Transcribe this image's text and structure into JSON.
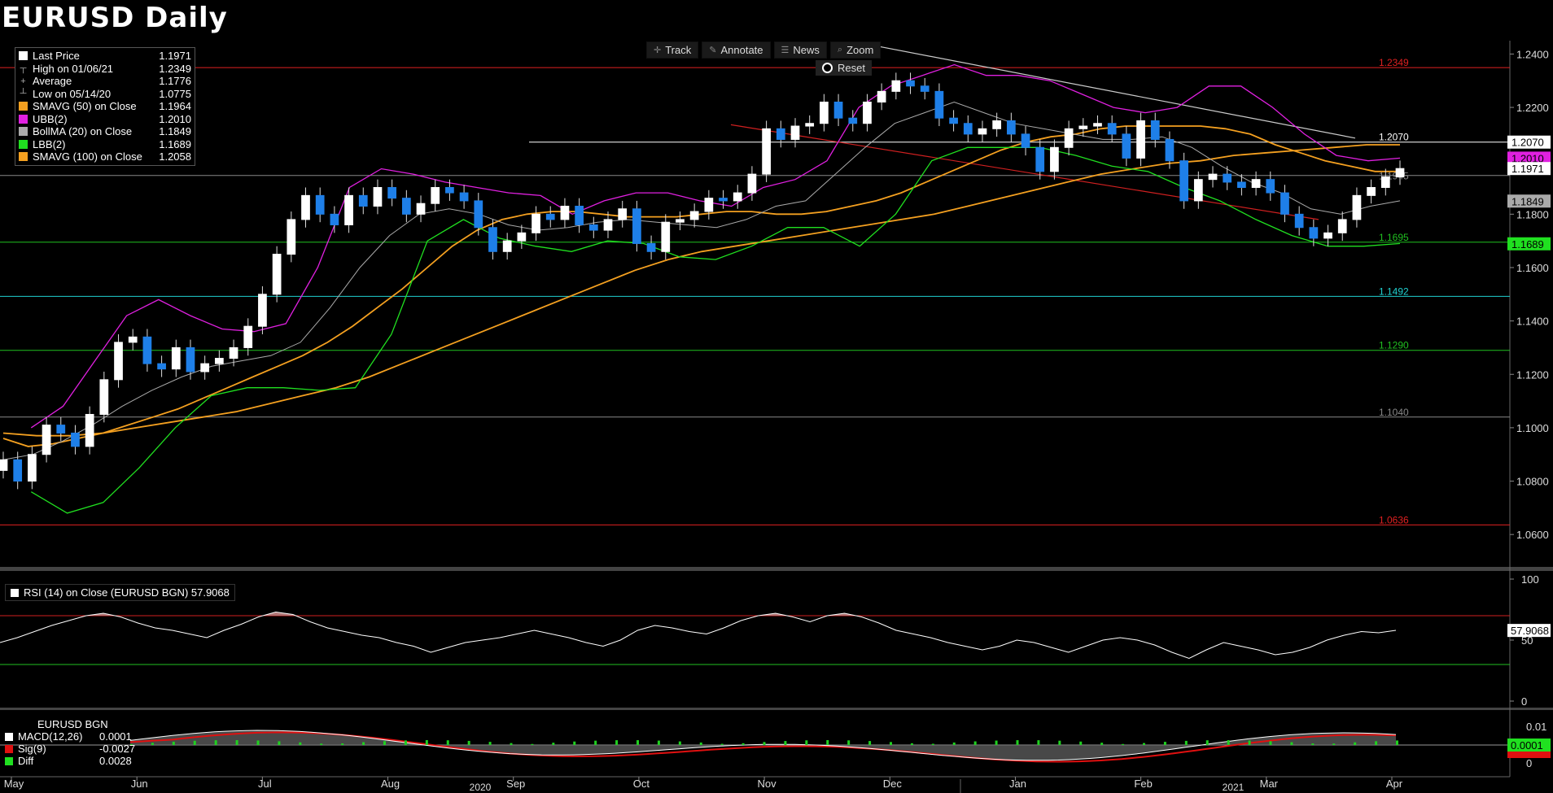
{
  "title": "EURUSD Daily",
  "legend": [
    {
      "name": "Last Price",
      "value": "1.1971",
      "color": "#ffffff",
      "kind": "swatch"
    },
    {
      "name": "High on 01/06/21",
      "value": "1.2349",
      "kind": "high"
    },
    {
      "name": "Average",
      "value": "1.1776",
      "kind": "avg"
    },
    {
      "name": "Low on 05/14/20",
      "value": "1.0775",
      "kind": "low"
    },
    {
      "name": "SMAVG (50)  on Close",
      "value": "1.1964",
      "color": "#f4a020",
      "kind": "swatch"
    },
    {
      "name": "UBB(2)",
      "value": "1.2010",
      "color": "#e020e0",
      "kind": "swatch"
    },
    {
      "name": "BollMA (20)  on Close",
      "value": "1.1849",
      "color": "#aaaaaa",
      "kind": "swatch"
    },
    {
      "name": "LBB(2)",
      "value": "1.1689",
      "color": "#20e020",
      "kind": "swatch"
    },
    {
      "name": "SMAVG (100)  on Close",
      "value": "1.2058",
      "color": "#f4a020",
      "kind": "swatch"
    }
  ],
  "toolbar": [
    {
      "label": "Track",
      "icon": "crosshair-icon",
      "glyph": "✛"
    },
    {
      "label": "Annotate",
      "icon": "pencil-icon",
      "glyph": "✎"
    },
    {
      "label": "News",
      "icon": "news-icon",
      "glyph": "☰"
    },
    {
      "label": "Zoom",
      "icon": "zoom-icon",
      "glyph": "⌕"
    }
  ],
  "reset_label": "Reset",
  "rsi_label": "RSI (14)  on Close (EURUSD BGN) 57.9068",
  "macd": {
    "header": "EURUSD BGN",
    "rows": [
      {
        "name": "MACD(12,26)",
        "value": "0.0001",
        "color": "#ffffff"
      },
      {
        "name": "Sig(9)",
        "value": "-0.0027",
        "color": "#e01010"
      },
      {
        "name": "Diff",
        "value": "0.0028",
        "color": "#20e020"
      }
    ]
  },
  "chart_data": {
    "type": "line",
    "title": "EURUSD Daily",
    "price_axis": {
      "ylim": [
        1.05,
        1.245
      ],
      "ticks": [
        "1.0600",
        "1.0800",
        "1.1000",
        "1.1200",
        "1.1400",
        "1.1600",
        "1.1800",
        "1.2000",
        "1.2200",
        "1.2400"
      ]
    },
    "time_axis": {
      "months": [
        "May",
        "Jun",
        "Jul",
        "Aug",
        "Sep",
        "Oct",
        "Nov",
        "Dec",
        "Jan",
        "Feb",
        "Mar",
        "Apr"
      ],
      "years": [
        "2020",
        "2021"
      ]
    },
    "levels": [
      {
        "label": "1.2349",
        "value": 1.2349,
        "color": "#e02020"
      },
      {
        "label": "1.2070",
        "value": 1.207,
        "color": "#ffffff"
      },
      {
        "label": "1.1945",
        "value": 1.1945,
        "color": "#888888"
      },
      {
        "label": "1.1695",
        "value": 1.1695,
        "color": "#20c020"
      },
      {
        "label": "1.1492",
        "value": 1.1492,
        "color": "#20d0d0"
      },
      {
        "label": "1.1290",
        "value": 1.129,
        "color": "#20c020"
      },
      {
        "label": "1.1040",
        "value": 1.104,
        "color": "#888888"
      },
      {
        "label": "1.0636",
        "value": 1.0636,
        "color": "#e02020"
      }
    ],
    "price_tags": [
      {
        "label": "1.2070",
        "value": 1.207,
        "bg": "#ffffff",
        "fg": "#000000"
      },
      {
        "label": "1.2010",
        "value": 1.201,
        "bg": "#e020e0",
        "fg": "#000000"
      },
      {
        "label": "1.1971",
        "value": 1.1971,
        "bg": "#ffffff",
        "fg": "#000000"
      },
      {
        "label": "1.1849",
        "value": 1.1849,
        "bg": "#aaaaaa",
        "fg": "#000000"
      },
      {
        "label": "1.1689",
        "value": 1.1689,
        "bg": "#20e020",
        "fg": "#000000"
      }
    ],
    "series": [
      {
        "name": "Last Price",
        "color": "#ffffff",
        "values": [
          1.088,
          1.08,
          1.09,
          1.101,
          1.098,
          1.093,
          1.105,
          1.118,
          1.132,
          1.134,
          1.124,
          1.122,
          1.13,
          1.121,
          1.124,
          1.126,
          1.13,
          1.138,
          1.15,
          1.165,
          1.178,
          1.187,
          1.18,
          1.176,
          1.187,
          1.183,
          1.19,
          1.186,
          1.18,
          1.184,
          1.19,
          1.188,
          1.185,
          1.175,
          1.166,
          1.17,
          1.173,
          1.18,
          1.178,
          1.183,
          1.176,
          1.174,
          1.178,
          1.182,
          1.169,
          1.166,
          1.177,
          1.178,
          1.181,
          1.186,
          1.185,
          1.188,
          1.195,
          1.212,
          1.208,
          1.213,
          1.214,
          1.222,
          1.216,
          1.214,
          1.222,
          1.226,
          1.23,
          1.228,
          1.226,
          1.216,
          1.214,
          1.21,
          1.212,
          1.215,
          1.21,
          1.205,
          1.196,
          1.205,
          1.212,
          1.213,
          1.214,
          1.21,
          1.201,
          1.215,
          1.208,
          1.2,
          1.185,
          1.193,
          1.195,
          1.192,
          1.19,
          1.193,
          1.188,
          1.18,
          1.175,
          1.171,
          1.173,
          1.178,
          1.187,
          1.19,
          1.194,
          1.1971
        ]
      },
      {
        "name": "SMAVG (50)",
        "color": "#f4a020",
        "values": [
          1.096,
          1.093,
          1.094,
          1.096,
          1.098,
          1.101,
          1.104,
          1.107,
          1.111,
          1.115,
          1.119,
          1.123,
          1.127,
          1.132,
          1.138,
          1.145,
          1.152,
          1.16,
          1.168,
          1.174,
          1.178,
          1.18,
          1.181,
          1.181,
          1.18,
          1.179,
          1.179,
          1.179,
          1.18,
          1.181,
          1.181,
          1.18,
          1.18,
          1.181,
          1.183,
          1.185,
          1.188,
          1.192,
          1.196,
          1.2,
          1.204,
          1.207,
          1.209,
          1.21,
          1.212,
          1.213,
          1.213,
          1.213,
          1.213,
          1.212,
          1.21,
          1.206,
          1.203,
          1.2,
          1.198,
          1.196,
          1.196
        ]
      },
      {
        "name": "SMAVG (100)",
        "color": "#f4a020",
        "values": [
          1.098,
          1.097,
          1.097,
          1.098,
          1.1,
          1.102,
          1.104,
          1.106,
          1.109,
          1.112,
          1.115,
          1.119,
          1.124,
          1.129,
          1.134,
          1.139,
          1.144,
          1.149,
          1.154,
          1.159,
          1.163,
          1.166,
          1.168,
          1.17,
          1.172,
          1.174,
          1.176,
          1.178,
          1.18,
          1.183,
          1.186,
          1.189,
          1.192,
          1.195,
          1.197,
          1.199,
          1.2,
          1.202,
          1.203,
          1.204,
          1.205,
          1.206,
          1.206
        ]
      },
      {
        "name": "BollMA (20)",
        "color": "#aaaaaa",
        "values": [
          1.088,
          1.09,
          1.095,
          1.101,
          1.108,
          1.114,
          1.119,
          1.123,
          1.125,
          1.127,
          1.132,
          1.145,
          1.16,
          1.172,
          1.18,
          1.182,
          1.18,
          1.176,
          1.174,
          1.175,
          1.177,
          1.178,
          1.177,
          1.176,
          1.175,
          1.178,
          1.183,
          1.185,
          1.195,
          1.205,
          1.214,
          1.218,
          1.222,
          1.218,
          1.214,
          1.212,
          1.21,
          1.208,
          1.208,
          1.209,
          1.205,
          1.198,
          1.192,
          1.188,
          1.182,
          1.18,
          1.183,
          1.185
        ]
      },
      {
        "name": "UBB(2)",
        "color": "#e020e0",
        "values": [
          1.1,
          1.108,
          1.125,
          1.142,
          1.148,
          1.142,
          1.137,
          1.136,
          1.139,
          1.16,
          1.19,
          1.197,
          1.195,
          1.192,
          1.19,
          1.188,
          1.187,
          1.18,
          1.185,
          1.188,
          1.188,
          1.185,
          1.183,
          1.19,
          1.193,
          1.2,
          1.22,
          1.228,
          1.232,
          1.236,
          1.232,
          1.232,
          1.23,
          1.225,
          1.22,
          1.218,
          1.22,
          1.228,
          1.228,
          1.22,
          1.21,
          1.202,
          1.2,
          1.201
        ]
      },
      {
        "name": "LBB(2)",
        "color": "#20e020",
        "values": [
          1.076,
          1.068,
          1.072,
          1.085,
          1.1,
          1.112,
          1.115,
          1.115,
          1.114,
          1.115,
          1.135,
          1.17,
          1.178,
          1.171,
          1.168,
          1.166,
          1.17,
          1.169,
          1.164,
          1.163,
          1.168,
          1.175,
          1.175,
          1.168,
          1.18,
          1.2,
          1.205,
          1.205,
          1.205,
          1.202,
          1.198,
          1.196,
          1.19,
          1.185,
          1.178,
          1.172,
          1.168,
          1.168,
          1.169
        ]
      }
    ],
    "rsi": {
      "ylim": [
        0,
        100
      ],
      "ticks": [
        "100",
        "50",
        "0"
      ],
      "overbought": 70,
      "oversold": 30,
      "last": "57.9068",
      "values": [
        48,
        52,
        57,
        62,
        66,
        70,
        72,
        69,
        64,
        60,
        58,
        55,
        52,
        58,
        63,
        69,
        73,
        71,
        65,
        60,
        57,
        54,
        52,
        48,
        45,
        40,
        44,
        48,
        50,
        52,
        55,
        58,
        55,
        52,
        48,
        45,
        50,
        58,
        62,
        60,
        57,
        55,
        60,
        66,
        70,
        72,
        69,
        65,
        70,
        72,
        69,
        64,
        58,
        55,
        52,
        48,
        45,
        42,
        45,
        50,
        48,
        44,
        40,
        45,
        50,
        52,
        50,
        46,
        40,
        35,
        42,
        48,
        45,
        42,
        38,
        40,
        44,
        50,
        54,
        57,
        56,
        58
      ]
    },
    "macd_axis": {
      "ticks": [
        "0.01",
        "0.0001",
        "0"
      ]
    }
  }
}
